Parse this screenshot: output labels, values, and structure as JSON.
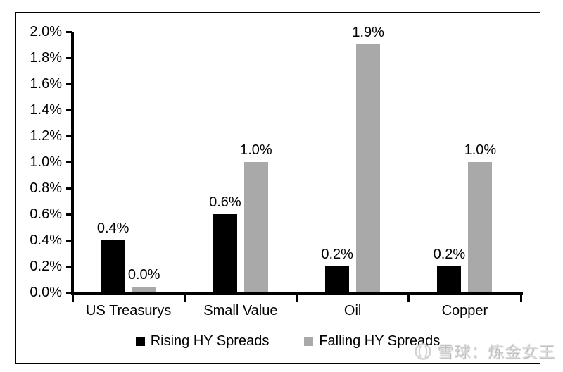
{
  "chart_data": {
    "type": "bar",
    "title": "",
    "categories": [
      "US Treasurys",
      "Small Value",
      "Oil",
      "Copper"
    ],
    "series": [
      {
        "name": "Rising HY Spreads",
        "color": "#000000",
        "values": [
          0.4,
          0.6,
          0.2,
          0.2
        ]
      },
      {
        "name": "Falling HY Spreads",
        "color": "#a9a9a9",
        "values": [
          0.0,
          1.0,
          1.9,
          1.0
        ]
      }
    ],
    "value_labels": [
      [
        "0.4%",
        "0.6%",
        "0.2%",
        "0.2%"
      ],
      [
        "0.0%",
        "1.0%",
        "1.9%",
        "1.0%"
      ]
    ],
    "xlabel": "",
    "ylabel": "",
    "y_axis": {
      "min": 0.0,
      "max": 2.0,
      "step": 0.2,
      "tick_labels": [
        "0.0%",
        "0.2%",
        "0.4%",
        "0.6%",
        "0.8%",
        "1.0%",
        "1.2%",
        "1.4%",
        "1.6%",
        "1.8%",
        "2.0%"
      ]
    },
    "grid": false,
    "legend_position": "bottom"
  },
  "watermark": {
    "text": "雪球：炼金女王",
    "logo": "xueqiu-logo",
    "color": "#d9d9d9"
  }
}
